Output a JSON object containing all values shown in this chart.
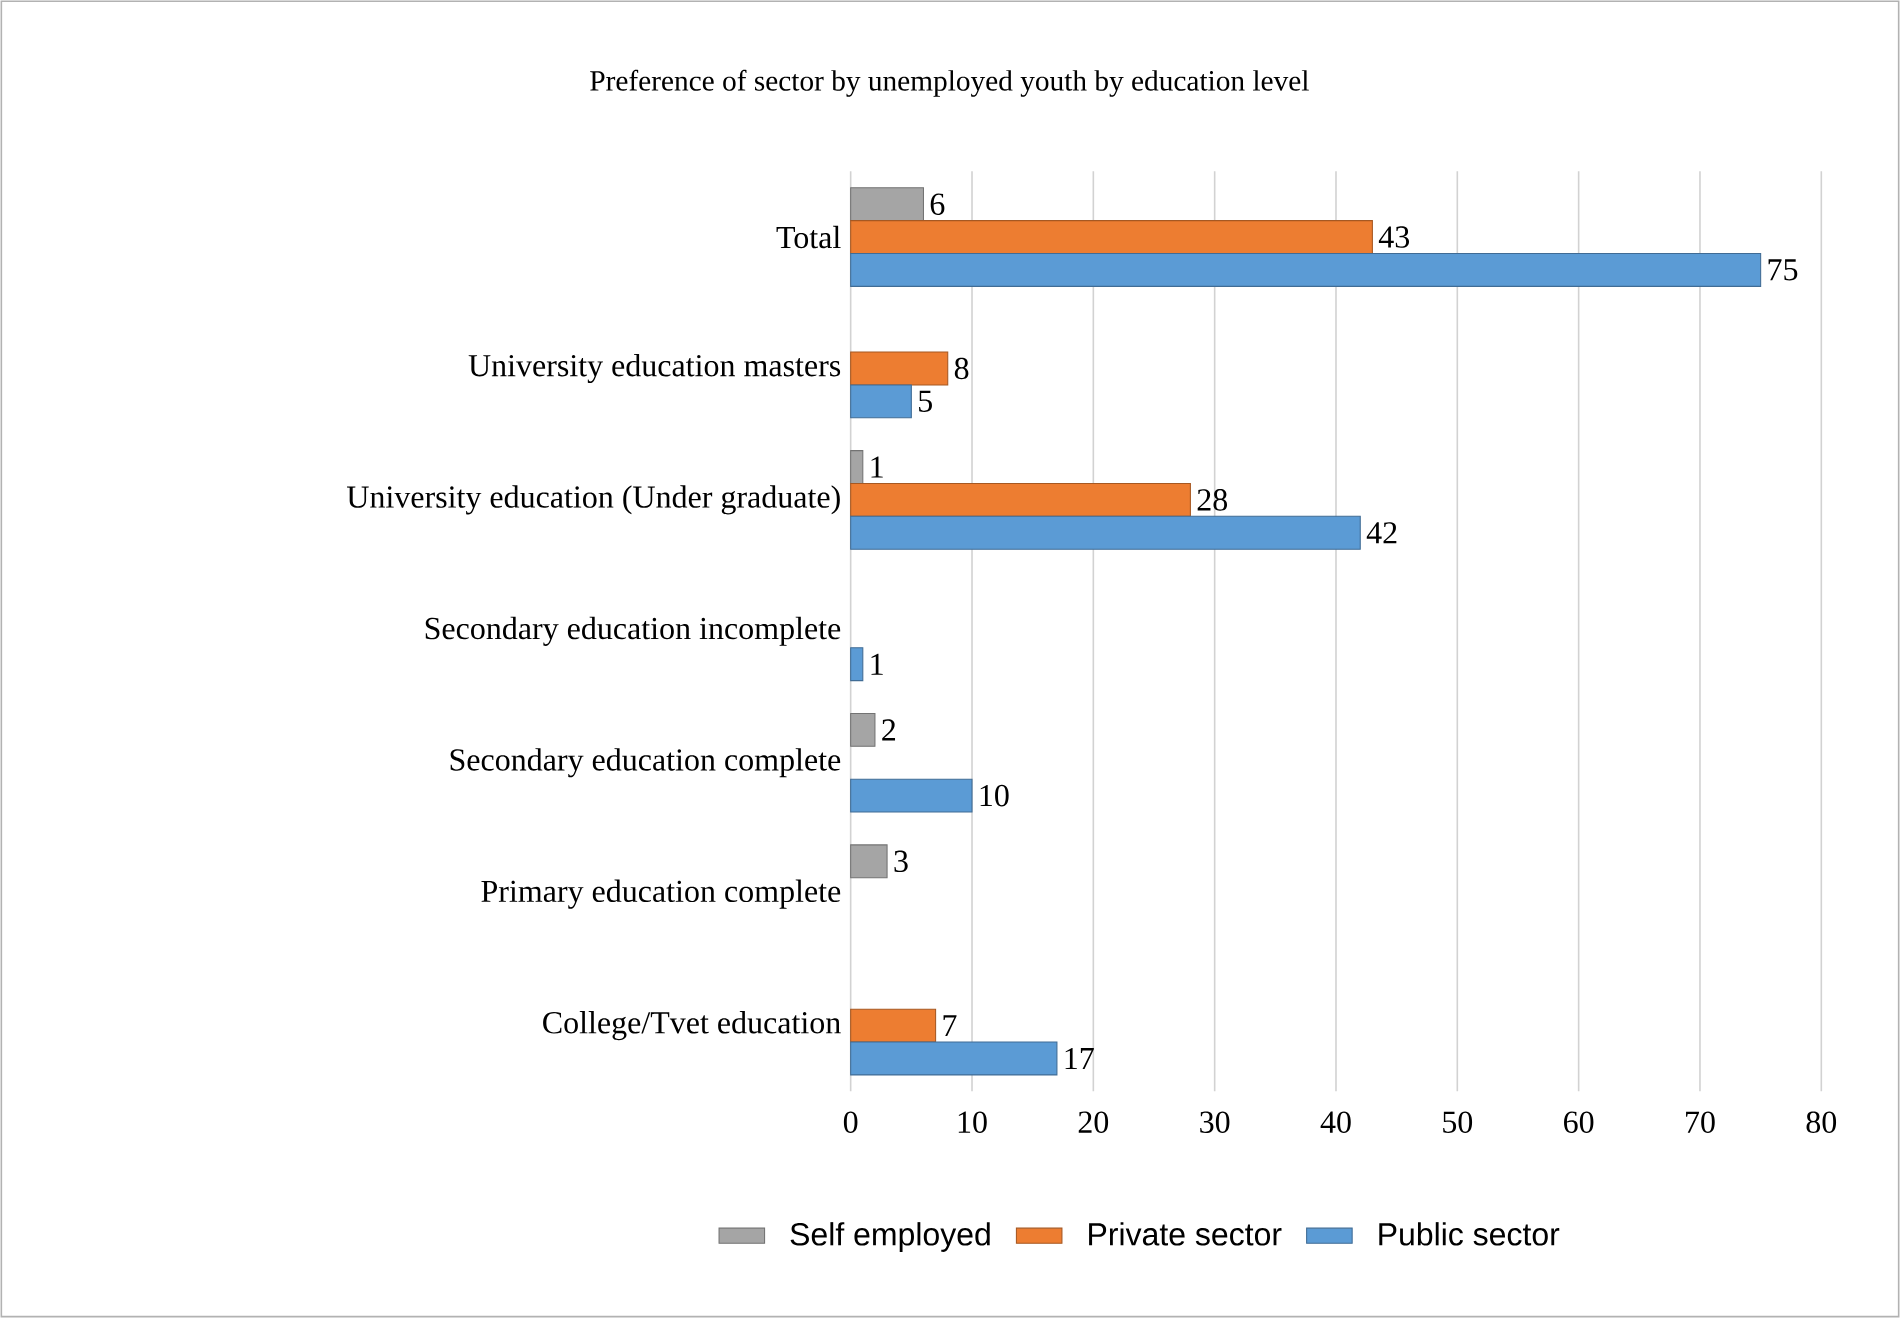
{
  "chart_data": {
    "type": "bar",
    "orientation": "horizontal",
    "title": "Preference  of sector by unemployed youth by education level",
    "categories": [
      "Total",
      "University education masters",
      "University education (Under graduate)",
      "Secondary education incomplete",
      "Secondary education complete",
      "Primary education complete",
      "College/Tvet education"
    ],
    "series": [
      {
        "name": "Self employed",
        "color": "#a5a5a5",
        "values": [
          6,
          null,
          1,
          null,
          2,
          3,
          null
        ]
      },
      {
        "name": "Private sector",
        "color": "#ed7d31",
        "values": [
          43,
          8,
          28,
          null,
          null,
          null,
          7
        ]
      },
      {
        "name": "Public sector",
        "color": "#5b9bd5",
        "values": [
          75,
          5,
          42,
          1,
          10,
          null,
          17
        ]
      }
    ],
    "xlim": [
      0,
      80
    ],
    "xticks": [
      0,
      10,
      20,
      30,
      40,
      50,
      60,
      70,
      80
    ],
    "grid": "x",
    "legend": "bottom",
    "data_labels": true
  }
}
